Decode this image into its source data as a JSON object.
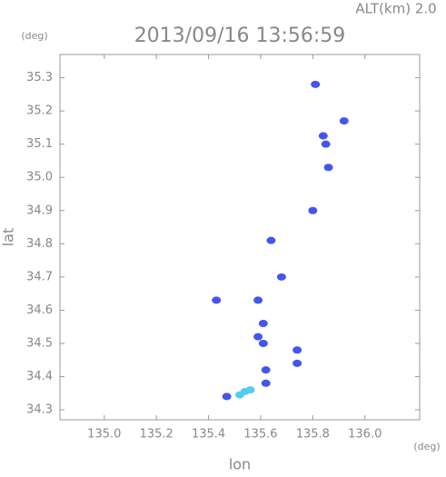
{
  "chart_data": {
    "type": "scatter",
    "title": "2013/09/16 13:56:59",
    "subtitle": "ALT(km) 2.0",
    "x_label": "lon",
    "y_label": "lat",
    "x_unit": "(deg)",
    "y_unit": "(deg)",
    "xlim": [
      134.83,
      136.21
    ],
    "ylim": [
      34.27,
      35.37
    ],
    "xticks": [
      {
        "value": 135.0,
        "label": "135.0"
      },
      135.2,
      135.4,
      135.6,
      135.8,
      {
        "value": 136.0,
        "label": "136.0"
      }
    ],
    "yticks": [
      34.3,
      34.4,
      34.5,
      34.6,
      34.7,
      34.8,
      34.9,
      {
        "value": 35.0,
        "label": "35.0"
      },
      35.1,
      35.2,
      35.3
    ],
    "series": [
      {
        "color": "#4455ee",
        "x": [
          135.81,
          135.92,
          135.84,
          135.85,
          135.86,
          135.8,
          135.64,
          135.68,
          135.43,
          135.59,
          135.61,
          135.59,
          135.61,
          135.74,
          135.74,
          135.62,
          135.62,
          135.47
        ],
        "values": [
          35.28,
          35.17,
          35.125,
          35.1,
          35.03,
          34.9,
          34.81,
          34.7,
          34.63,
          34.63,
          34.56,
          34.52,
          34.5,
          34.48,
          34.44,
          34.42,
          34.38,
          34.34
        ]
      },
      {
        "color": "#55ccee",
        "x": [
          135.52,
          135.54,
          135.56
        ],
        "values": [
          34.345,
          34.355,
          34.36
        ]
      }
    ]
  }
}
